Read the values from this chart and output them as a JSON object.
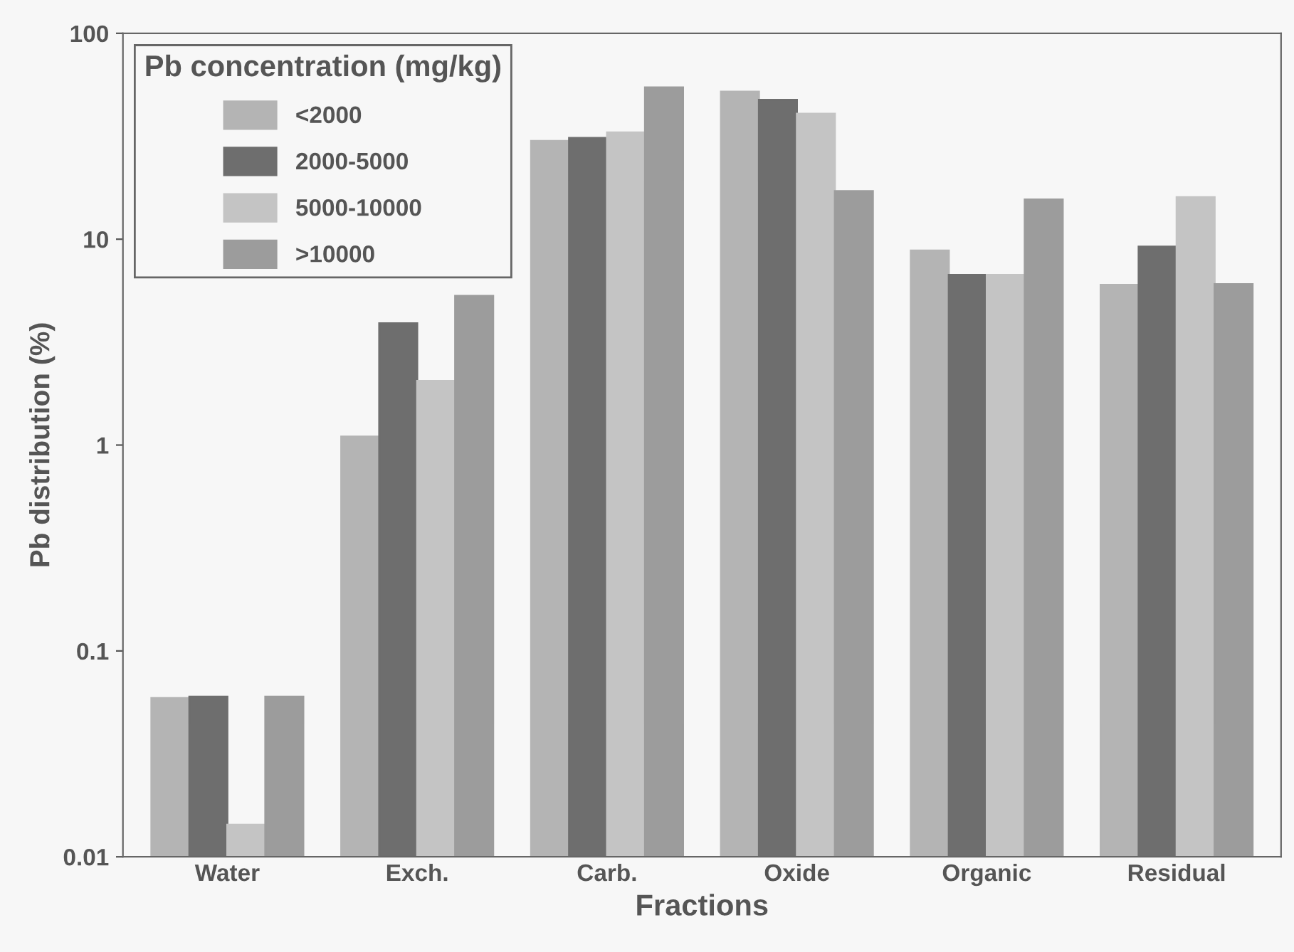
{
  "chart_data": {
    "type": "bar",
    "xlabel": "Fractions",
    "ylabel": "Pb distribution (%)",
    "legend_title": "Pb concentration (mg/kg)",
    "categories": [
      "Water",
      "Exch.",
      "Carb.",
      "Oxide",
      "Organic",
      "Residual"
    ],
    "series": [
      {
        "name": "<2000",
        "color": "#b4b4b4",
        "values": [
          0.059,
          1.1,
          30,
          52,
          8.8,
          6.0
        ]
      },
      {
        "name": "2000-5000",
        "color": "#6e6e6e",
        "values": [
          0.06,
          3.9,
          31,
          47.5,
          6.7,
          9.2
        ]
      },
      {
        "name": "5000-10000",
        "color": "#c4c4c4",
        "values": [
          0.0143,
          2.05,
          33,
          40.7,
          6.7,
          16
        ]
      },
      {
        "name": ">10000",
        "color": "#9c9c9c",
        "values": [
          0.06,
          5.3,
          54.6,
          17.1,
          15.6,
          6.05
        ]
      }
    ],
    "log": "y",
    "ylim": [
      0.01,
      100
    ],
    "yticks": [
      0.01,
      0.1,
      1,
      10,
      100
    ],
    "grid": false,
    "legend": "top left"
  }
}
